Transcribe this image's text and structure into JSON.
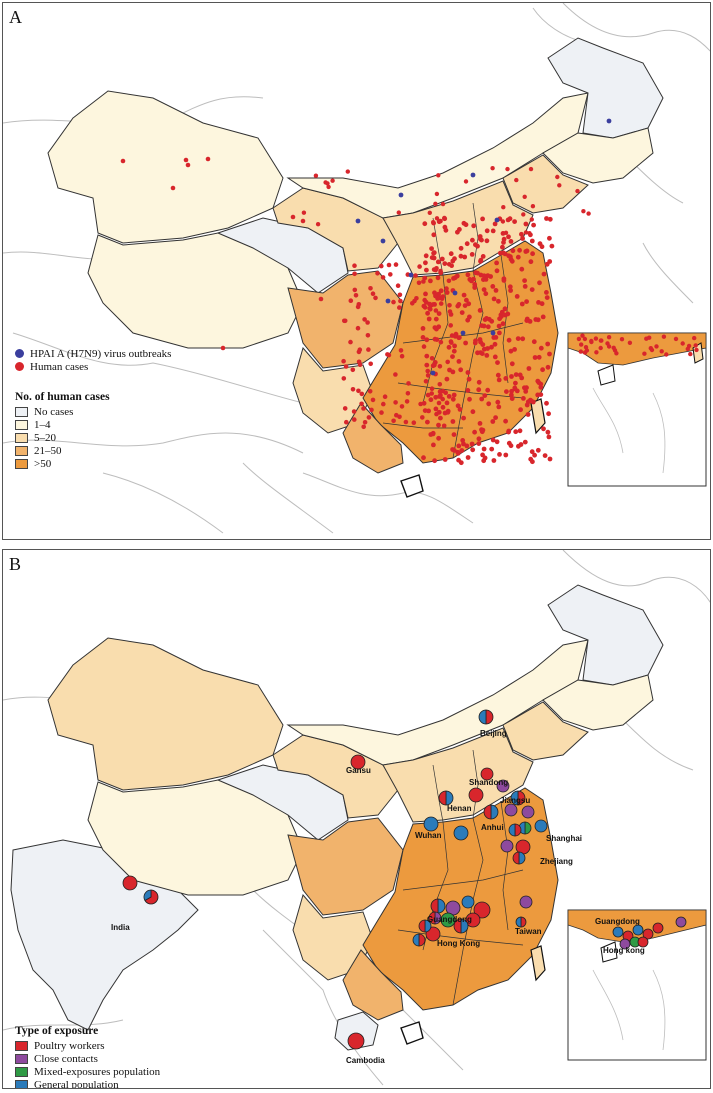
{
  "panel_a": {
    "letter": "A",
    "point_legend": [
      {
        "label": "HPAI A (H7N9) virus outbreaks",
        "color": "#3b3f9e"
      },
      {
        "label": "Human cases",
        "color": "#d8262c"
      }
    ],
    "choropleth_legend": {
      "title": "No. of human cases",
      "items": [
        {
          "label": "No cases",
          "color": "#eef1f5"
        },
        {
          "label": "1–4",
          "color": "#fdf6de"
        },
        {
          "label": "5–20",
          "color": "#f9ddae"
        },
        {
          "label": "21–50",
          "color": "#f1b36c"
        },
        {
          "label": ">50",
          "color": "#ec9a3e"
        }
      ]
    }
  },
  "panel_b": {
    "letter": "B",
    "exposure_legend": {
      "title": "Type of exposure",
      "items": [
        {
          "label": "Poultry workers",
          "color": "#d8262c"
        },
        {
          "label": "Close contacts",
          "color": "#8e4a9e"
        },
        {
          "label": "Mixed-exposures population",
          "color": "#2f9a45"
        },
        {
          "label": "General population",
          "color": "#2b7bba"
        }
      ]
    },
    "place_labels": {
      "beijing": "Beijing",
      "gansu": "Gansu",
      "shandong": "Shandong",
      "henan": "Henan",
      "jiangsu": "Jiangsu",
      "anhui": "Anhui",
      "wuhan": "Wuhan",
      "shanghai": "Shanghai",
      "zhejiang": "Zhejiang",
      "guangdong": "Guangdong",
      "taiwan": "Taiwan",
      "hong_kong": "Hong Kong",
      "india": "India",
      "cambodia": "Cambodia",
      "inset_guangdong": "Guangdong",
      "inset_hong_kong": "Hong kong"
    }
  }
}
